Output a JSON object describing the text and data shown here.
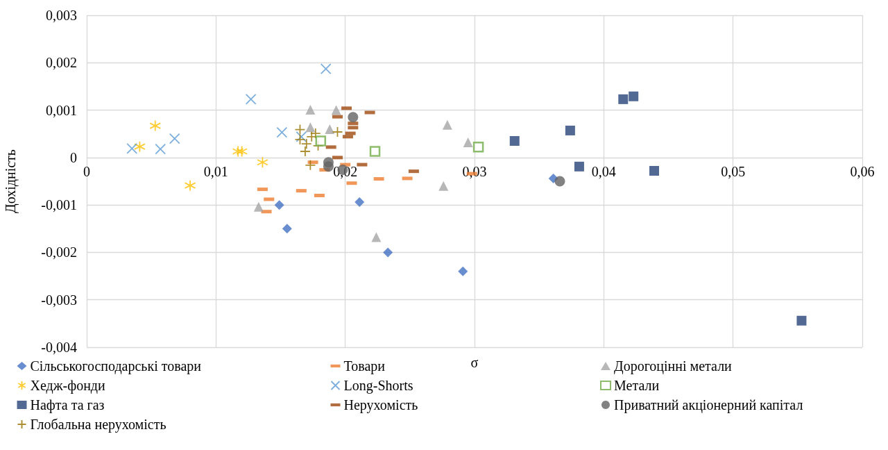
{
  "chart_data": {
    "type": "scatter",
    "xlabel": "σ",
    "ylabel": "Дохідність",
    "xlim": [
      0,
      0.06
    ],
    "xticks": [
      {
        "value": 0,
        "label": "0"
      },
      {
        "value": 0.01,
        "label": "0,01"
      },
      {
        "value": 0.02,
        "label": "0,02"
      },
      {
        "value": 0.03,
        "label": "0,03"
      },
      {
        "value": 0.04,
        "label": "0,04"
      },
      {
        "value": 0.05,
        "label": "0,05"
      },
      {
        "value": 0.06,
        "label": "0,06"
      }
    ],
    "ylim": [
      -0.004,
      0.003
    ],
    "yticks": [
      {
        "value": -0.004,
        "label": "-0,004"
      },
      {
        "value": -0.003,
        "label": "-0,003"
      },
      {
        "value": -0.002,
        "label": "-0,002"
      },
      {
        "value": -0.001,
        "label": "-0,001"
      },
      {
        "value": 0,
        "label": "0"
      },
      {
        "value": 0.001,
        "label": "0,001"
      },
      {
        "value": 0.002,
        "label": "0,002"
      },
      {
        "value": 0.003,
        "label": "0,003"
      }
    ],
    "grid": true,
    "legend": "bottom",
    "series": [
      {
        "name": "Сільськогосподарські товари",
        "color": "#4472c4",
        "marker": "diamond",
        "x": [
          0.0149,
          0.0155,
          0.0211,
          0.0233,
          0.0291,
          0.0361
        ],
        "values": [
          -0.001,
          -0.0015,
          -0.00094,
          -0.002,
          -0.0024,
          -0.00044
        ]
      },
      {
        "name": "Товари",
        "color": "#ed7d31",
        "x": [
          0.0136,
          0.0141,
          0.0139,
          0.0166,
          0.018,
          0.0175,
          0.0184,
          0.02,
          0.0205,
          0.0226,
          0.0248,
          0.0298
        ],
        "values": [
          -0.00067,
          -0.00088,
          -0.00114,
          -0.0007,
          -0.0008,
          -0.0001,
          -0.00026,
          -0.00015,
          -0.00054,
          -0.00045,
          -0.00044,
          -0.00034
        ]
      },
      {
        "name": "Дорогоцінні метали",
        "color": "#a5a5a5",
        "marker": "triangle",
        "x": [
          0.0133,
          0.0173,
          0.0193,
          0.0173,
          0.0188,
          0.0279,
          0.0295,
          0.0276,
          0.0224
        ],
        "values": [
          -0.00104,
          0.00101,
          0.001,
          0.00064,
          0.0006,
          0.00069,
          0.00032,
          -0.0006,
          -0.00168
        ]
      },
      {
        "name": "Хедж-фонди",
        "color": "#ffc000",
        "marker": "cross",
        "x": [
          0.0041,
          0.0053,
          0.008,
          0.0117,
          0.012,
          0.0136
        ],
        "values": [
          0.00023,
          0.00067,
          -0.00059,
          0.00013,
          0.00013,
          -0.0001
        ]
      },
      {
        "name": "Long-Shorts",
        "color": "#5b9bd5",
        "marker": "x",
        "x": [
          0.0035,
          0.0057,
          0.0068,
          0.0127,
          0.0151,
          0.0185,
          0.0166
        ],
        "values": [
          0.00019,
          0.00018,
          0.0004,
          0.00123,
          0.00053,
          0.00187,
          0.00044
        ]
      },
      {
        "name": "Метали",
        "color": "#70ad47",
        "marker": "square",
        "x": [
          0.0181,
          0.0223,
          0.0303
        ],
        "values": [
          0.00035,
          0.00013,
          0.00022
        ]
      },
      {
        "name": "Нафта та газ",
        "color": "#264478",
        "marker": "square",
        "x": [
          0.0331,
          0.0374,
          0.0381,
          0.0415,
          0.0423,
          0.0439,
          0.0553
        ],
        "values": [
          0.00035,
          0.00057,
          -0.00019,
          0.00123,
          0.00129,
          -0.00028,
          -0.00344
        ]
      },
      {
        "name": "Нерухомість",
        "color": "#9e480e",
        "x": [
          0.0201,
          0.0219,
          0.0194,
          0.0206,
          0.0206,
          0.0204,
          0.0202,
          0.0189,
          0.0194,
          0.0213,
          0.0253
        ],
        "values": [
          0.00104,
          0.00095,
          0.00086,
          0.00072,
          0.00063,
          0.00051,
          0.00044,
          0.00022,
          0,
          -0.00015,
          -0.00029
        ]
      },
      {
        "name": "Приватний акціонерний капітал",
        "color": "#636363",
        "marker": "circle",
        "x": [
          0.0206,
          0.0187,
          0.0187,
          0.0198,
          0.0366
        ],
        "values": [
          0.00085,
          -0.0001,
          -0.00019,
          -0.00026,
          -0.0005
        ]
      },
      {
        "name": "Глобальна нерухомість",
        "color": "#997300",
        "marker": "plus",
        "x": [
          0.0165,
          0.0165,
          0.017,
          0.0169,
          0.0177,
          0.0174,
          0.0179,
          0.0194,
          0.0173
        ],
        "values": [
          0.00059,
          0.00038,
          0.00029,
          0.00013,
          0.00051,
          0.00044,
          0.00025,
          0.00054,
          -0.00016
        ]
      }
    ]
  }
}
